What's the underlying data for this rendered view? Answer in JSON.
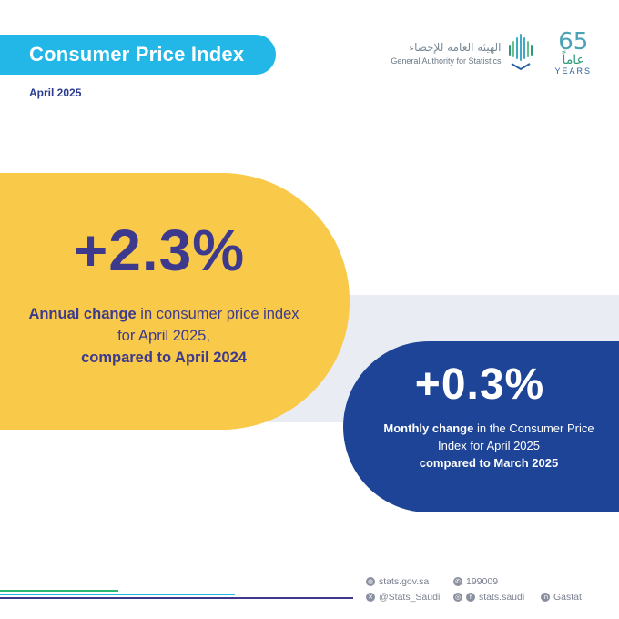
{
  "header": {
    "title": "Consumer Price Index",
    "date": "April 2025"
  },
  "logo": {
    "arabic_name": "الهيئة العامة للإحصاء",
    "english_name": "General Authority for Statistics",
    "anniversary_number": "65",
    "anniversary_arabic": "عاماً",
    "anniversary_years": "YEARS"
  },
  "annual": {
    "value": "+2.3%",
    "desc_bold_1": "Annual change",
    "desc_regular": " in consumer price index for April 2025,",
    "desc_bold_2": "compared to April 2024"
  },
  "monthly": {
    "value": "+0.3%",
    "desc_bold_1": "Monthly change",
    "desc_regular": " in the Consumer Price Index for April 2025",
    "desc_bold_2": "compared to March 2025"
  },
  "footer": {
    "website": "stats.gov.sa",
    "phone": "199009",
    "twitter": "@Stats_Saudi",
    "facebook": "stats.saudi",
    "linkedin": "Gastat"
  },
  "colors": {
    "title_bg": "#22b7e6",
    "yellow": "#f9c94a",
    "navy": "#1d4496",
    "indigo_text": "#3d3a8e",
    "band": "#e9ecf3"
  }
}
